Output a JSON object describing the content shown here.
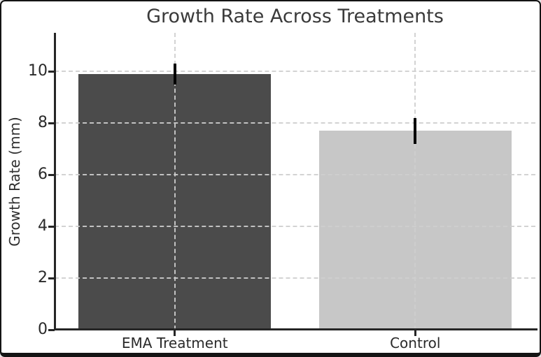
{
  "chart_data": {
    "type": "bar",
    "title": "Growth Rate Across Treatments",
    "xlabel": "",
    "ylabel": "Growth Rate (mm)",
    "categories": [
      "EMA Treatment",
      "Control"
    ],
    "values": [
      9.9,
      7.7
    ],
    "errors": [
      0.4,
      0.5
    ],
    "bar_colors": [
      "#4b4b4b",
      "#c7c7c7"
    ],
    "error_bar_color": "#000000",
    "yticks": [
      0,
      2,
      4,
      6,
      8,
      10
    ],
    "ylim": [
      0,
      11.5
    ],
    "bar_width_fraction": 0.8,
    "grid": true,
    "grid_style": "dashed",
    "grid_color": "#cfcfcf",
    "grid_lines": "horizontal at yticks and vertical at bar centers, drawn over bars",
    "legend": "none",
    "background_color": "#ffffff",
    "text_color": "#2a2a2a",
    "axis_color": "#262626"
  }
}
